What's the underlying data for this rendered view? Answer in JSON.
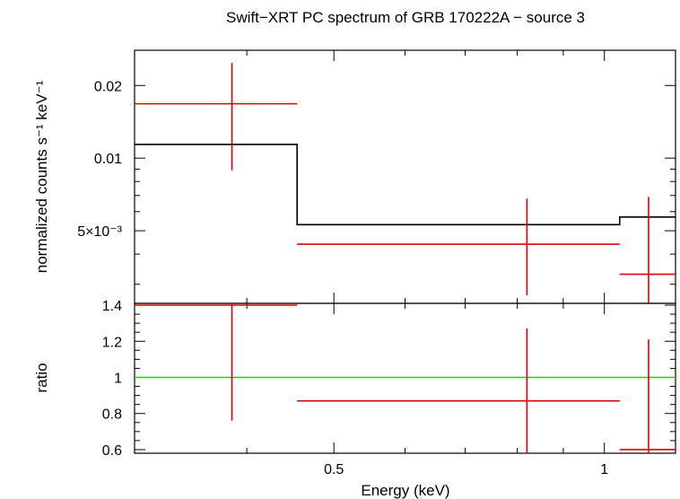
{
  "chart_data": {
    "title": "Swift−XRT PC spectrum of GRB 170222A − source 3",
    "xlabel": "Energy (keV)",
    "x_scale": "log",
    "xlim": [
      0.3,
      1.2
    ],
    "x_ticks": [
      {
        "value": 0.5,
        "label": "0.5"
      },
      {
        "value": 1,
        "label": "1"
      }
    ],
    "panels": [
      {
        "id": "spectrum",
        "type": "scatter",
        "ylabel": "normalized counts s⁻¹ keV⁻¹",
        "y_scale": "log",
        "ylim": [
          0.0025,
          0.028
        ],
        "y_ticks": [
          {
            "value": 0.02,
            "label": "0.02"
          },
          {
            "value": 0.01,
            "label": "0.01"
          },
          {
            "value": 0.005,
            "label": "5×10⁻³"
          }
        ],
        "data_color": "#dd0000",
        "model_color": "#000000",
        "data": [
          {
            "x": 0.385,
            "x_lo": 0.3,
            "x_hi": 0.455,
            "y": 0.0168,
            "y_lo": 0.0089,
            "y_hi": 0.0248
          },
          {
            "x": 0.82,
            "x_lo": 0.455,
            "x_hi": 1.04,
            "y": 0.0044,
            "y_lo": 0.0027,
            "y_hi": 0.0068
          },
          {
            "x": 1.12,
            "x_lo": 1.04,
            "x_hi": 1.2,
            "y": 0.0033,
            "y_lo": 0.0025,
            "y_hi": 0.0069
          }
        ],
        "model_steps": [
          {
            "x_lo": 0.3,
            "x_hi": 0.455,
            "y": 0.0114
          },
          {
            "x_lo": 0.455,
            "x_hi": 1.04,
            "y": 0.0053
          },
          {
            "x_lo": 1.04,
            "x_hi": 1.2,
            "y": 0.0057
          }
        ]
      },
      {
        "id": "ratio",
        "type": "scatter",
        "ylabel": "ratio",
        "y_scale": "linear",
        "ylim": [
          0.58,
          1.41
        ],
        "y_ticks": [
          {
            "value": 1.4,
            "label": "1.4"
          },
          {
            "value": 1.2,
            "label": "1.2"
          },
          {
            "value": 1,
            "label": "1"
          },
          {
            "value": 0.8,
            "label": "0.8"
          },
          {
            "value": 0.6,
            "label": "0.6"
          }
        ],
        "data_color": "#dd0000",
        "reference_line": {
          "y": 1,
          "color": "#00dd00"
        },
        "data": [
          {
            "x": 0.385,
            "x_lo": 0.3,
            "x_hi": 0.455,
            "y": 1.4,
            "y_lo": 0.76,
            "y_hi": 1.41
          },
          {
            "x": 0.82,
            "x_lo": 0.455,
            "x_hi": 1.04,
            "y": 0.87,
            "y_lo": 0.58,
            "y_hi": 1.27
          },
          {
            "x": 1.12,
            "x_lo": 1.04,
            "x_hi": 1.2,
            "y": 0.6,
            "y_lo": 0.58,
            "y_hi": 1.21
          }
        ]
      }
    ]
  }
}
